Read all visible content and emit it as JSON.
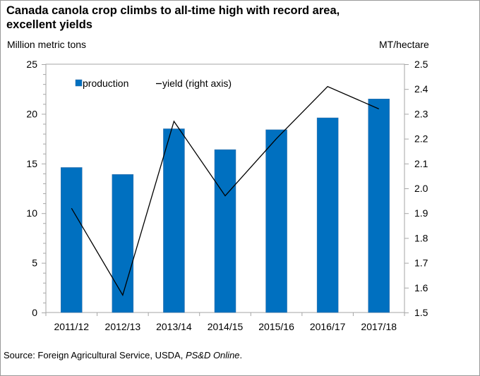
{
  "chart_data": {
    "type": "bar",
    "title": "Canada canola crop climbs to all-time high with record area, excellent yields",
    "xlabel": "",
    "ylabel": "Million metric tons",
    "y2label": "MT/hectare",
    "categories": [
      "2011/12",
      "2012/13",
      "2013/14",
      "2014/15",
      "2015/16",
      "2016/17",
      "2017/18"
    ],
    "series": [
      {
        "name": "production",
        "type": "bar",
        "axis": "left",
        "color": "#0070C0",
        "values": [
          14.6,
          13.9,
          18.5,
          16.4,
          18.4,
          19.6,
          21.5
        ]
      },
      {
        "name": "yield (right axis)",
        "type": "line",
        "axis": "right",
        "color": "#000000",
        "values": [
          1.92,
          1.57,
          2.27,
          1.97,
          2.2,
          2.41,
          2.32
        ]
      }
    ],
    "ylim": [
      0,
      25
    ],
    "yticks": [
      0,
      5,
      10,
      15,
      20,
      25
    ],
    "y2lim": [
      1.5,
      2.5
    ],
    "y2ticks": [
      "1.5",
      "1.6",
      "1.7",
      "1.8",
      "1.9",
      "2.0",
      "2.1",
      "2.2",
      "2.3",
      "2.4",
      "2.5"
    ],
    "grid": false,
    "legend": {
      "position": "top-left",
      "entries": [
        {
          "label": "production",
          "marker": "square"
        },
        {
          "label": "yield (right axis)",
          "marker": "line"
        }
      ]
    }
  },
  "source": {
    "prefix": "Source: Foreign Agricultural Service, USDA, ",
    "italic": "PS&D Online",
    "suffix": "."
  }
}
